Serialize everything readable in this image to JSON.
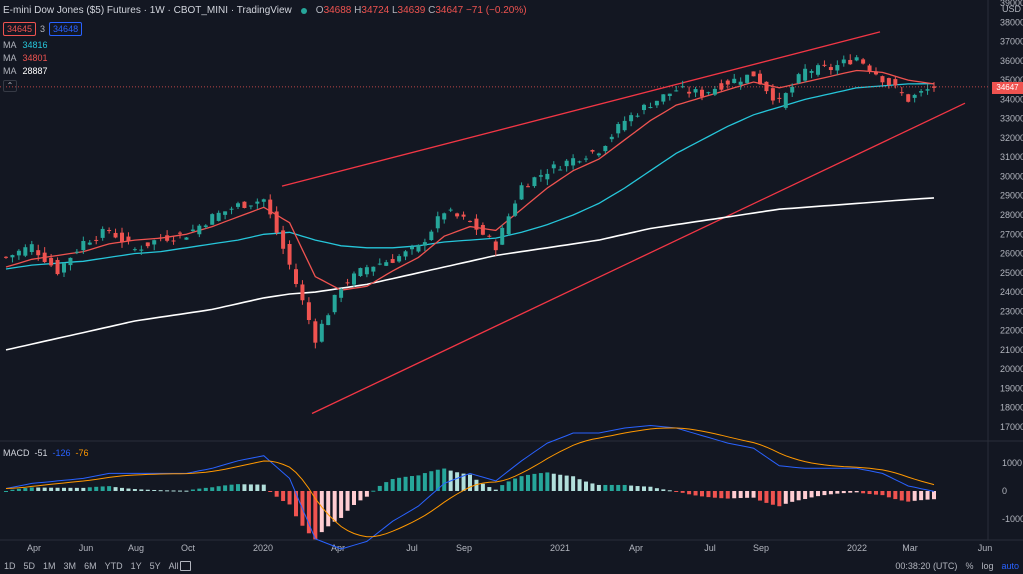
{
  "header": {
    "symbol": "E-mini Dow Jones ($5) Futures · 1W · CBOT_MINI · TradingView",
    "open_label": "O",
    "open": "34688",
    "high_label": "H",
    "high": "34724",
    "low_label": "L",
    "low": "34639",
    "close_label": "C",
    "close": "34647",
    "change": "−71 (−0.20%)",
    "bid": "34645",
    "spread": "3",
    "ask": "34648"
  },
  "ma_legend": [
    {
      "label": "MA",
      "value": "34816",
      "color": "#26c6da"
    },
    {
      "label": "MA",
      "value": "34801",
      "color": "#ef5350"
    },
    {
      "label": "MA",
      "value": "28887",
      "color": "#ffffff"
    }
  ],
  "macd_legend": {
    "label": "MACD",
    "v1": "-51",
    "v2": "-126",
    "v3": "-76"
  },
  "last_price_tag": "34647",
  "usd_label": "USD",
  "price_axis": [
    "39000",
    "38000",
    "37000",
    "36000",
    "35000",
    "34000",
    "33000",
    "32000",
    "31000",
    "30000",
    "29000",
    "28000",
    "27000",
    "26000",
    "25000",
    "24000",
    "23000",
    "22000",
    "21000",
    "20000",
    "19000",
    "18000",
    "17000"
  ],
  "macd_axis": [
    "1000",
    "0",
    "-1000"
  ],
  "time_axis": [
    "Apr",
    "Jun",
    "Aug",
    "Oct",
    "2020",
    "Apr",
    "Jul",
    "Sep",
    "2021",
    "Apr",
    "Jul",
    "Sep",
    "2022",
    "Mar",
    "Jun"
  ],
  "ranges": [
    "1D",
    "5D",
    "1M",
    "3M",
    "6M",
    "YTD",
    "1Y",
    "5Y",
    "All"
  ],
  "clock": "00:38:20 (UTC)",
  "scale_options": {
    "percent": "%",
    "log": "log",
    "auto": "auto"
  },
  "colors": {
    "up": "#26a69a",
    "down": "#ef5350",
    "ma_fast": "#ef5350",
    "ma_mid": "#26c6da",
    "ma_slow": "#ffffff",
    "channel": "#f23645",
    "macd_line": "#2962ff",
    "signal_line": "#ff9800",
    "hist_pos": "#26a69a",
    "hist_pos_light": "#b2dfdb",
    "hist_neg": "#ef5350",
    "hist_neg_light": "#ffcdd2"
  },
  "chart_data": {
    "type": "candlestick",
    "timeframe": "1W",
    "ylim": [
      17000,
      39000
    ],
    "x": [
      "2019-03",
      "2019-04",
      "2019-05",
      "2019-06",
      "2019-07",
      "2019-08",
      "2019-09",
      "2019-10",
      "2019-11",
      "2019-12",
      "2020-01",
      "2020-02",
      "2020-03",
      "2020-04",
      "2020-05",
      "2020-06",
      "2020-07",
      "2020-08",
      "2020-09",
      "2020-10",
      "2020-11",
      "2020-12",
      "2021-01",
      "2021-02",
      "2021-03",
      "2021-04",
      "2021-05",
      "2021-06",
      "2021-07",
      "2021-08",
      "2021-09",
      "2021-10",
      "2021-11",
      "2021-12",
      "2022-01",
      "2022-02",
      "2022-03"
    ],
    "close": [
      25800,
      26400,
      25100,
      26600,
      27200,
      26200,
      26800,
      27000,
      27900,
      28500,
      28800,
      25400,
      21600,
      24300,
      25300,
      25700,
      26300,
      28200,
      27600,
      26400,
      29500,
      30300,
      30900,
      31400,
      32900,
      33800,
      34500,
      34300,
      34900,
      35300,
      33800,
      35500,
      35600,
      36200,
      35100,
      34000,
      34650
    ],
    "ma_fast": [
      25300,
      25700,
      25900,
      26100,
      26500,
      26700,
      26800,
      27000,
      27400,
      27900,
      28400,
      27600,
      24800,
      24100,
      24300,
      25100,
      25800,
      26900,
      27400,
      27200,
      28300,
      29400,
      30300,
      30900,
      31900,
      32900,
      33700,
      34100,
      34500,
      34900,
      34600,
      34900,
      35200,
      35500,
      35400,
      35000,
      34800
    ],
    "ma_mid": [
      25200,
      25400,
      25500,
      25600,
      25800,
      26000,
      26100,
      26300,
      26500,
      26700,
      27000,
      27100,
      26700,
      26400,
      26300,
      26300,
      26400,
      26600,
      26700,
      26800,
      27100,
      27500,
      28000,
      28600,
      29400,
      30300,
      31200,
      31900,
      32600,
      33200,
      33600,
      34000,
      34300,
      34600,
      34700,
      34800,
      34816
    ],
    "ma_slow": [
      21000,
      21300,
      21600,
      21900,
      22200,
      22500,
      22700,
      22900,
      23100,
      23400,
      23700,
      23900,
      24000,
      24200,
      24400,
      24700,
      25000,
      25300,
      25600,
      25900,
      26100,
      26300,
      26500,
      26700,
      27000,
      27300,
      27500,
      27700,
      27900,
      28100,
      28300,
      28400,
      28500,
      28600,
      28700,
      28800,
      28887
    ],
    "channel_upper": [
      [
        29500,
        "2020-02"
      ],
      [
        37500,
        "2022-01"
      ]
    ],
    "channel_lower": [
      [
        17800,
        "2020-03"
      ],
      [
        33800,
        "2022-03"
      ]
    ]
  }
}
